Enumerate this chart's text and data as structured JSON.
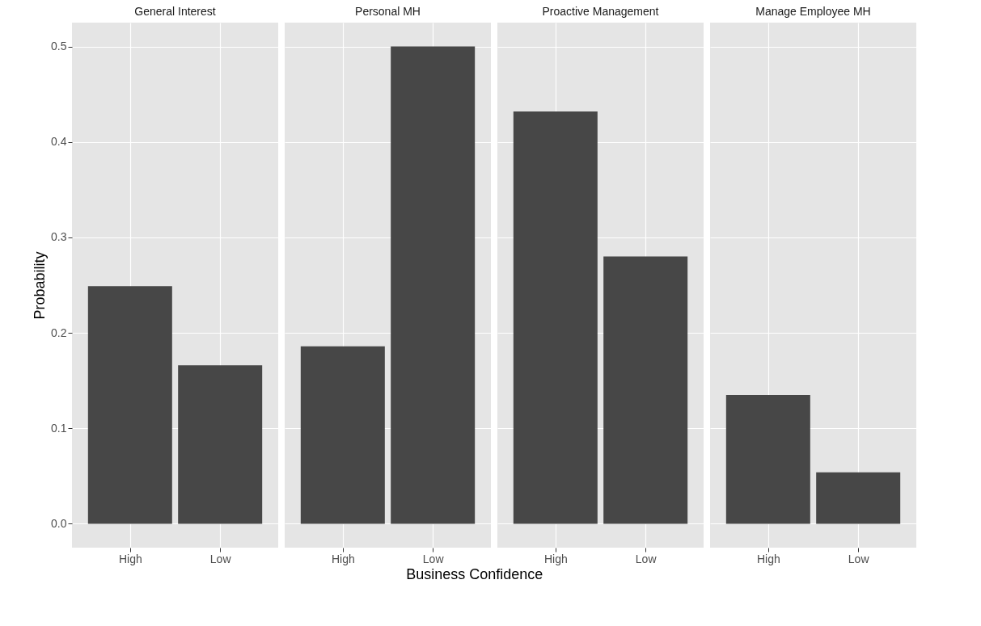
{
  "chart_data": [
    {
      "type": "bar",
      "title": "General Interest",
      "ylabel": "Probability",
      "categories": [
        "High",
        "Low"
      ],
      "values": [
        0.249,
        0.166
      ],
      "color": "#474747",
      "ylim": [
        -0.025,
        0.525
      ],
      "yticks": [
        {
          "value": 0,
          "label": "0.0"
        },
        0.1,
        0.2,
        0.3,
        0.4,
        0.5
      ],
      "grid": true
    },
    {
      "type": "bar",
      "title": "Personal MH",
      "xlabel": "Business Confidence",
      "categories": [
        "High",
        "Low"
      ],
      "values": [
        0.186,
        0.5
      ],
      "color": "#474747",
      "ylim": [
        -0.025,
        0.525
      ],
      "yticks": [
        0,
        0.1,
        0.2,
        0.3,
        0.4,
        0.5
      ],
      "tick_labels": "x",
      "grid": true
    },
    {
      "type": "bar",
      "title": "Proactive Management",
      "categories": [
        "High",
        "Low"
      ],
      "values": [
        0.432,
        0.28
      ],
      "color": "#474747",
      "ylim": [
        -0.025,
        0.525
      ],
      "yticks": [
        0,
        0.1,
        0.2,
        0.3,
        0.4,
        0.5
      ],
      "tick_labels": "x",
      "grid": true
    },
    {
      "type": "bar",
      "title": "Manage Employee MH",
      "categories": [
        "High",
        "Low"
      ],
      "values": [
        0.135,
        0.054
      ],
      "color": "#474747",
      "ylim": [
        -0.025,
        0.525
      ],
      "yticks": [
        0,
        0.1,
        0.2,
        0.3,
        0.4,
        0.5
      ],
      "tick_labels": "x",
      "grid": true
    }
  ]
}
